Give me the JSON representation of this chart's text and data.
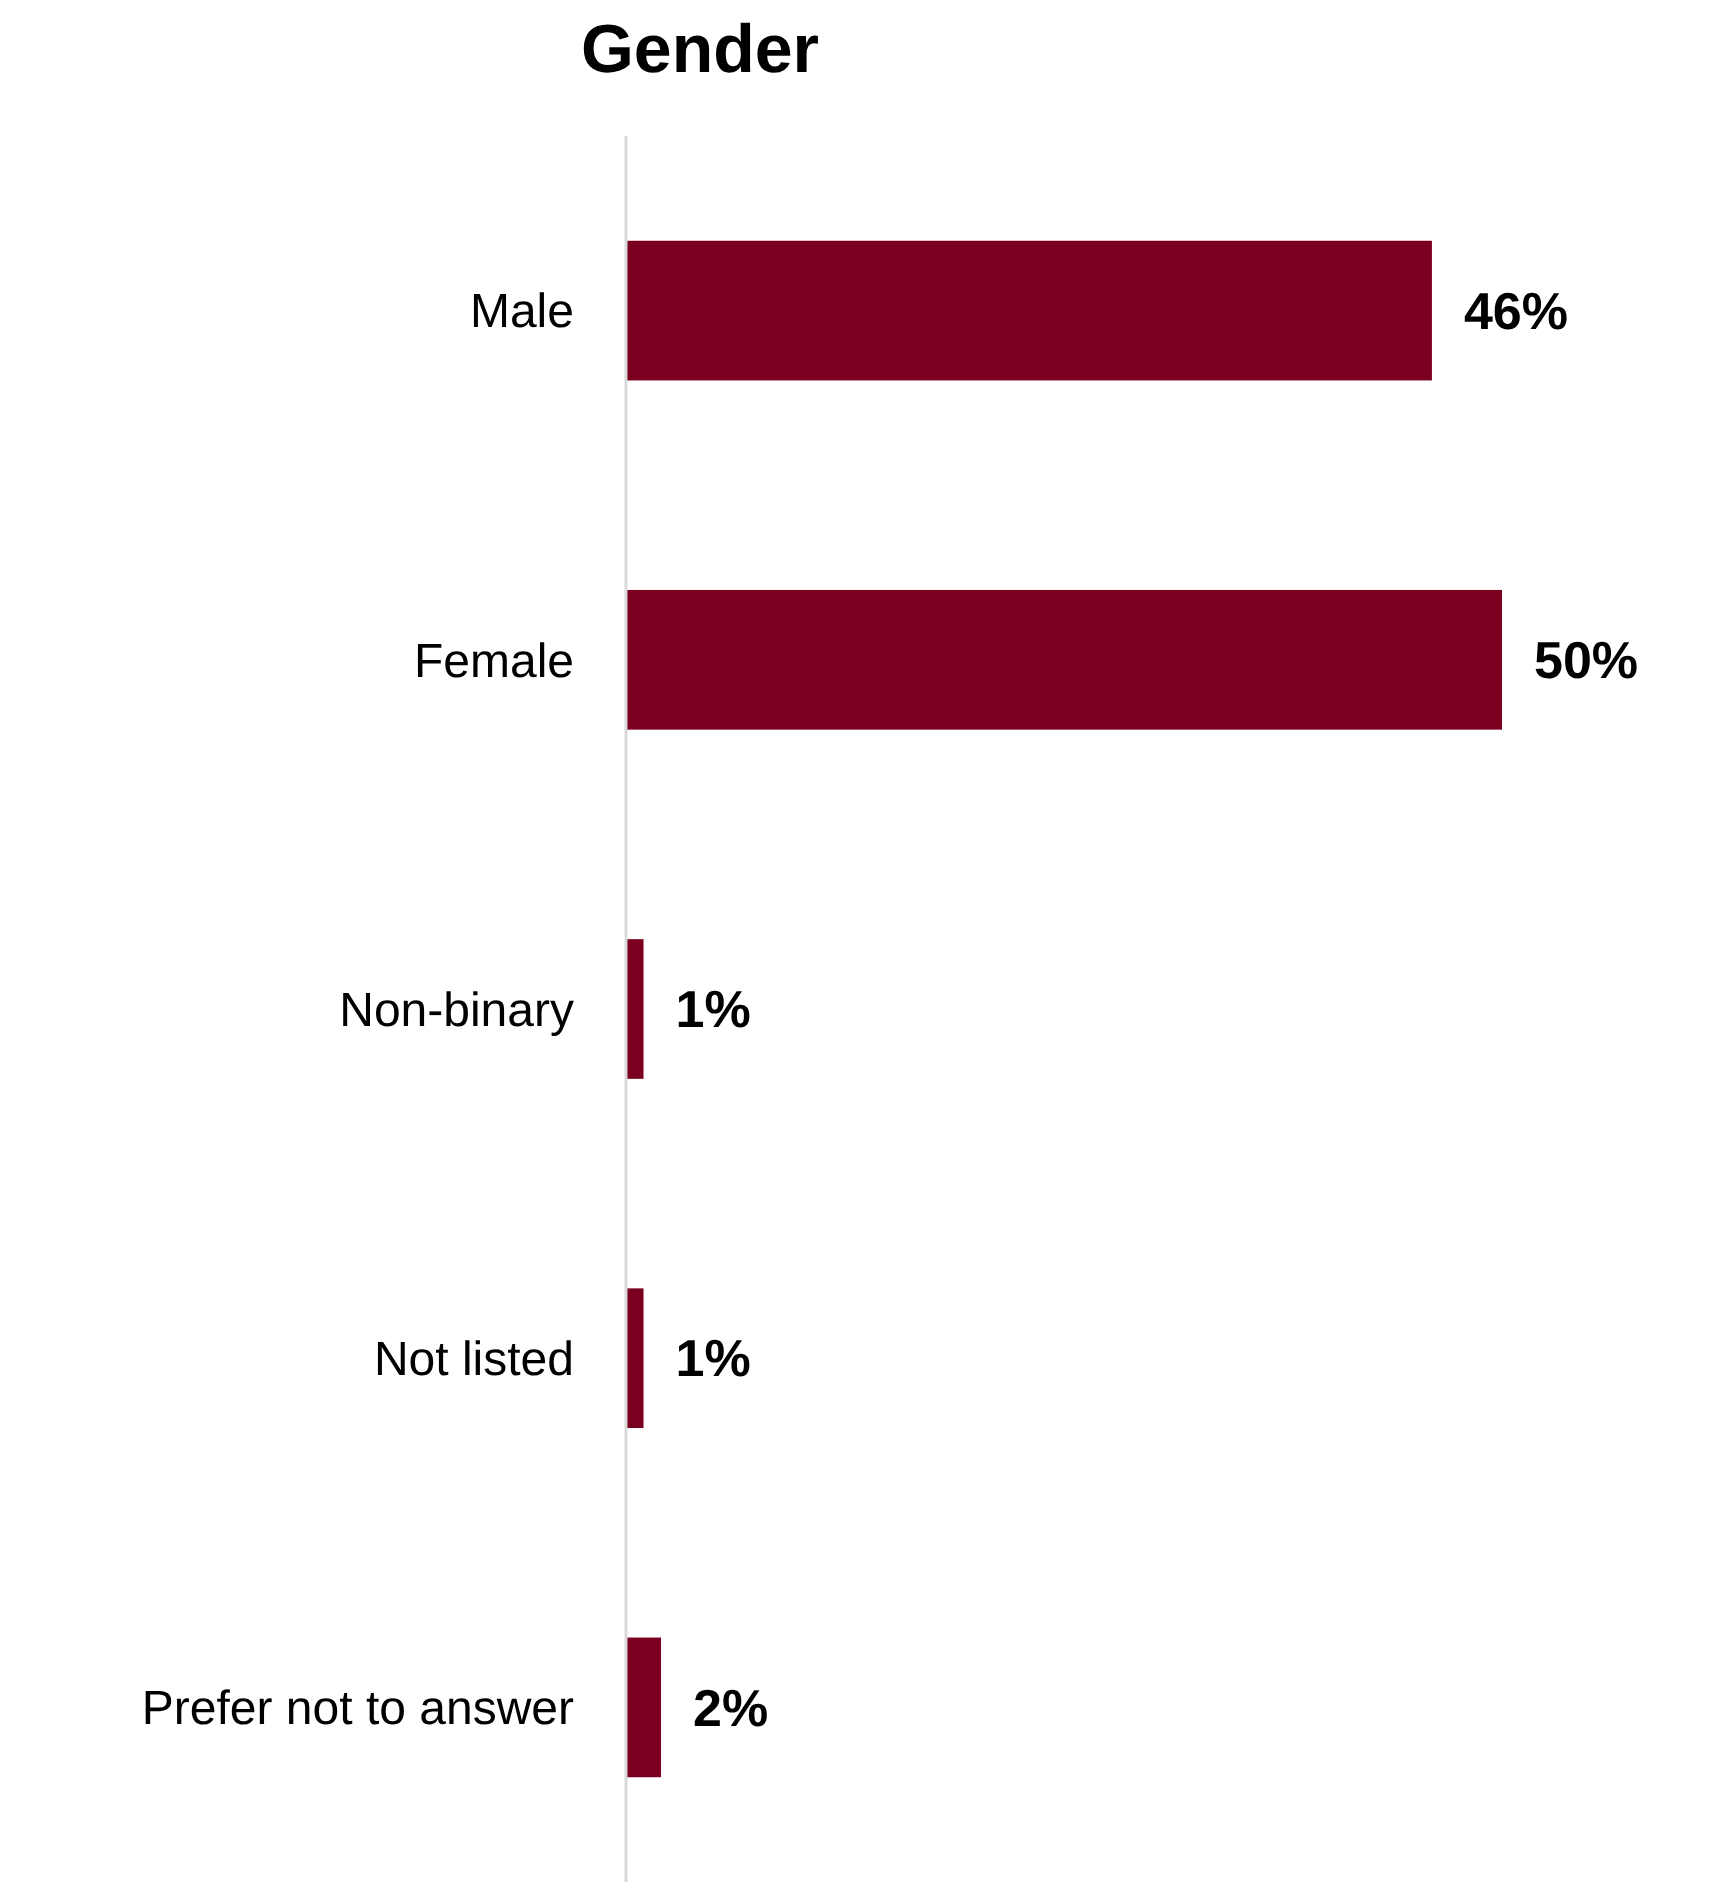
{
  "chart_data": {
    "type": "bar",
    "orientation": "horizontal",
    "title": "Gender",
    "categories": [
      "Male",
      "Female",
      "Non-binary",
      "Not listed",
      "Prefer not to answer"
    ],
    "values": [
      46,
      50,
      1,
      1,
      2
    ],
    "value_labels": [
      "46%",
      "50%",
      "1%",
      "1%",
      "2%"
    ],
    "color": "#7b0020"
  }
}
